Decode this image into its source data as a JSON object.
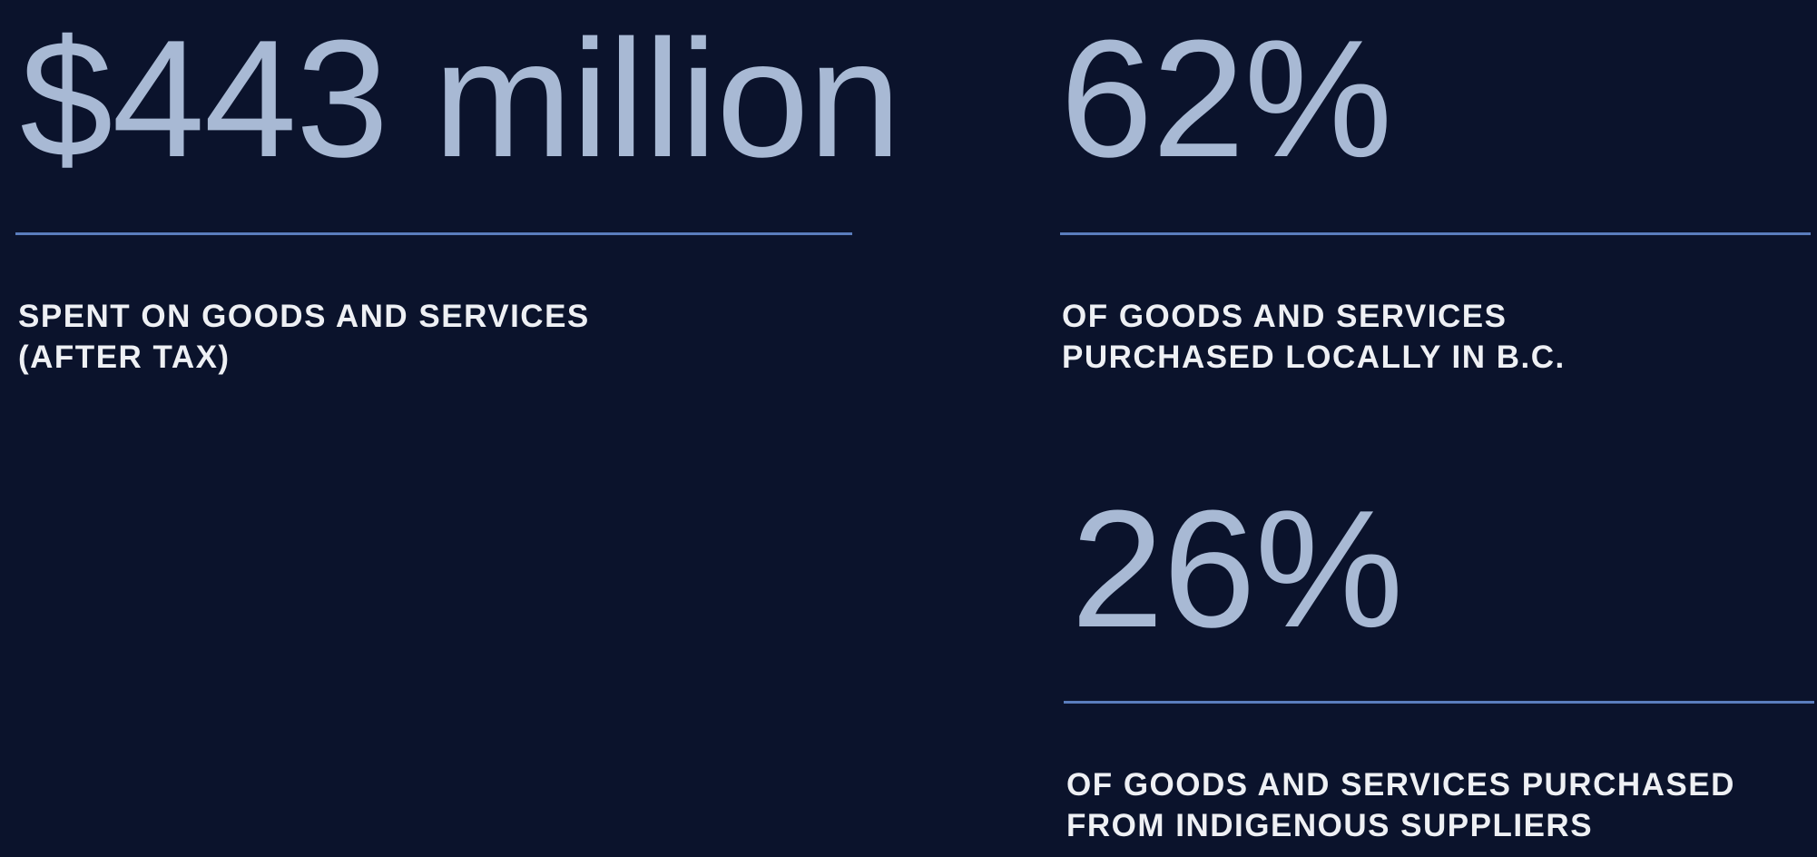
{
  "stats": [
    {
      "value": "$443 million",
      "description": [
        "SPENT ON GOODS AND SERVICES",
        "(AFTER TAX)"
      ]
    },
    {
      "value": "62%",
      "description": [
        "OF GOODS AND SERVICES",
        "PURCHASED LOCALLY IN B.C."
      ]
    },
    {
      "value": "26%",
      "description": [
        "OF GOODS AND SERVICES PURCHASED",
        "FROM INDIGENOUS SUPPLIERS"
      ]
    }
  ]
}
